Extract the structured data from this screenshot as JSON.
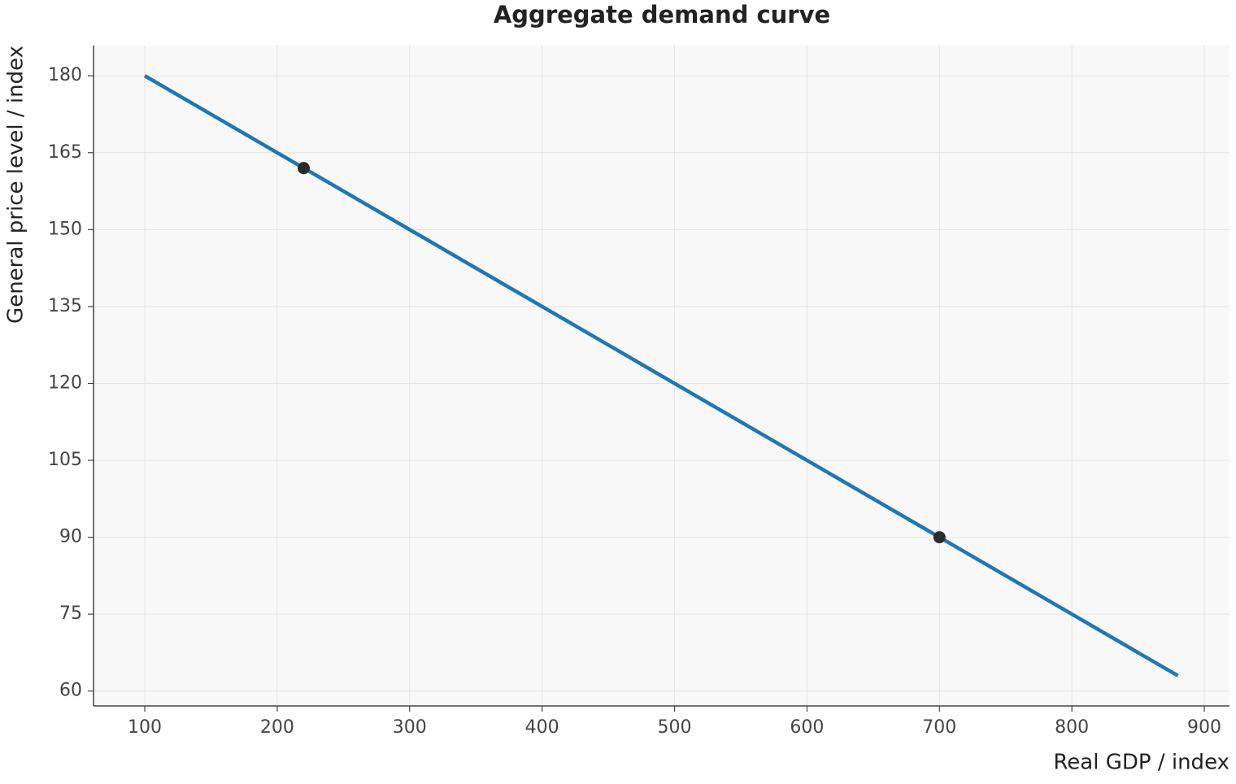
{
  "chart_data": {
    "type": "line",
    "title": "Aggregate demand curve",
    "x_label": "Real GDP / index",
    "y_label": "General price level / index",
    "line": {
      "x": [
        100,
        880
      ],
      "values": [
        180,
        63
      ],
      "color": "#1f77b4"
    },
    "points": {
      "x": [
        220,
        700
      ],
      "values": [
        162,
        90
      ],
      "color": "#2b2b2b"
    },
    "xlim": [
      61.3,
      919
    ],
    "ylim": [
      57.1,
      185.9
    ],
    "xticks": [
      100,
      200,
      300,
      400,
      500,
      600,
      700,
      800,
      900
    ],
    "yticks": [
      60,
      75,
      90,
      105,
      120,
      135,
      150,
      165,
      180
    ],
    "grid": true
  }
}
